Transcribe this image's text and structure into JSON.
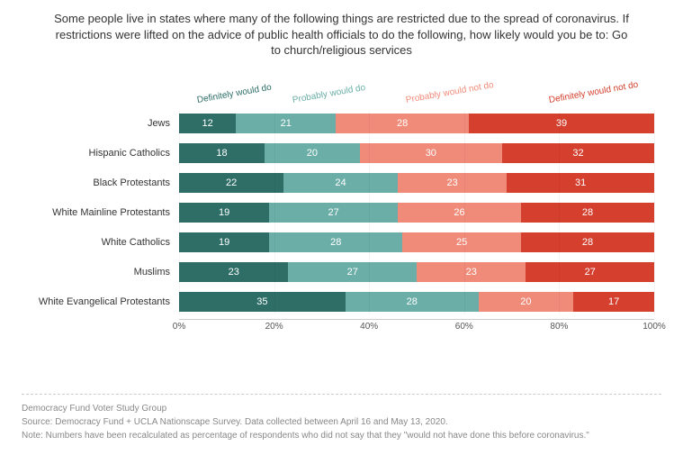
{
  "title": "Some people live in states where many of the following things are restricted due to the spread of coronavirus. If restrictions were lifted on the advice of public health officials to do the following, how likely would you be to: Go to church/religious services",
  "chart": {
    "type": "stacked-bar-horizontal",
    "series": [
      {
        "key": "definitely_would",
        "label": "Definitely would do",
        "color": "#2e6e67",
        "label_color": "#2e6e67",
        "legend_left_pct": 4
      },
      {
        "key": "probably_would",
        "label": "Probably would do",
        "color": "#6aaea7",
        "label_color": "#6aaea7",
        "legend_left_pct": 24
      },
      {
        "key": "probably_would_not",
        "label": "Probably would not do",
        "color": "#f08b7a",
        "label_color": "#f08b7a",
        "legend_left_pct": 48
      },
      {
        "key": "definitely_would_not",
        "label": "Definitely would not do",
        "color": "#d43f2e",
        "label_color": "#d43f2e",
        "legend_left_pct": 78
      }
    ],
    "rows": [
      {
        "label": "Jews",
        "values": [
          12,
          21,
          28,
          39
        ]
      },
      {
        "label": "Hispanic Catholics",
        "values": [
          18,
          20,
          30,
          32
        ]
      },
      {
        "label": "Black Protestants",
        "values": [
          22,
          24,
          23,
          31
        ]
      },
      {
        "label": "White Mainline Protestants",
        "values": [
          19,
          27,
          26,
          28
        ]
      },
      {
        "label": "White Catholics",
        "values": [
          19,
          28,
          25,
          28
        ]
      },
      {
        "label": "Muslims",
        "values": [
          23,
          27,
          23,
          27
        ]
      },
      {
        "label": "White Evangelical Protestants",
        "values": [
          35,
          28,
          20,
          17
        ]
      }
    ],
    "x_axis": {
      "min": 0,
      "max": 100,
      "ticks": [
        0,
        20,
        40,
        60,
        80,
        100
      ],
      "tick_suffix": "%"
    },
    "value_label_color": "#ffffff",
    "value_label_fontsize": 11,
    "row_label_fontsize": 11
  },
  "footer": {
    "line1": "Democracy Fund Voter Study Group",
    "line2": "Source: Democracy Fund + UCLA Nationscape Survey. Data collected between April 16 and May 13, 2020.",
    "line3": "Note: Numbers have been recalculated as percentage of respondents who did not say that they \"would not have done this before coronavirus.\""
  }
}
